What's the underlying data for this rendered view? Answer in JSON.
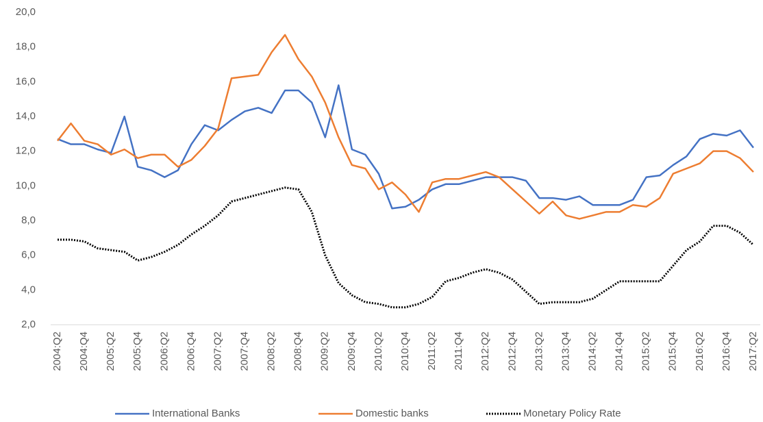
{
  "chart_data": {
    "type": "line",
    "categories": [
      "2004:Q2",
      null,
      "2004:Q4",
      null,
      "2005:Q2",
      null,
      "2005:Q4",
      null,
      "2006:Q2",
      null,
      "2006:Q4",
      null,
      "2007:Q2",
      null,
      "2007:Q4",
      null,
      "2008:Q2",
      null,
      "2008:Q4",
      null,
      "2009:Q2",
      null,
      "2009:Q4",
      null,
      "2010:Q2",
      null,
      "2010:Q4",
      null,
      "2011:Q2",
      null,
      "2011:Q4",
      null,
      "2012:Q2",
      null,
      "2012:Q4",
      null,
      "2013:Q2",
      null,
      "2013:Q4",
      null,
      "2014:Q2",
      null,
      "2014:Q4",
      null,
      "2015:Q2",
      null,
      "2015:Q4",
      null,
      "2016:Q2",
      null,
      "2016:Q4",
      null,
      "2017:Q2"
    ],
    "series": [
      {
        "name": "International Banks",
        "color": "#4472c4",
        "style": "solid",
        "values": [
          12.7,
          12.4,
          12.4,
          12.1,
          11.9,
          14.0,
          11.1,
          10.9,
          10.5,
          10.9,
          12.4,
          13.5,
          13.2,
          13.8,
          14.3,
          14.5,
          14.2,
          15.5,
          15.5,
          14.8,
          12.8,
          15.8,
          12.1,
          11.8,
          10.7,
          8.7,
          8.8,
          9.2,
          9.8,
          10.1,
          10.1,
          10.3,
          10.5,
          10.5,
          10.5,
          10.3,
          9.3,
          9.3,
          9.2,
          9.4,
          8.9,
          8.9,
          8.9,
          9.2,
          10.5,
          10.6,
          11.2,
          11.7,
          12.7,
          13.0,
          12.9,
          13.2,
          12.2
        ]
      },
      {
        "name": "Domestic banks",
        "color": "#ed7d31",
        "style": "solid",
        "values": [
          12.6,
          13.6,
          12.6,
          12.4,
          11.8,
          12.1,
          11.6,
          11.8,
          11.8,
          11.1,
          11.5,
          12.3,
          13.3,
          16.2,
          16.3,
          16.4,
          17.7,
          18.7,
          17.3,
          16.3,
          14.8,
          12.8,
          11.2,
          11.0,
          9.8,
          10.2,
          9.5,
          8.5,
          10.2,
          10.4,
          10.4,
          10.6,
          10.8,
          10.5,
          9.8,
          9.1,
          8.4,
          9.1,
          8.3,
          8.1,
          8.3,
          8.5,
          8.5,
          8.9,
          8.8,
          9.3,
          10.7,
          11.0,
          11.3,
          12.0,
          12.0,
          11.6,
          10.8
        ]
      },
      {
        "name": "Monetary Policy Rate",
        "color": "#000000",
        "style": "dotted",
        "values": [
          6.9,
          6.9,
          6.8,
          6.4,
          6.3,
          6.2,
          5.7,
          5.9,
          6.2,
          6.6,
          7.2,
          7.7,
          8.3,
          9.1,
          9.3,
          9.5,
          9.7,
          9.9,
          9.8,
          8.5,
          6.0,
          4.4,
          3.7,
          3.3,
          3.2,
          3.0,
          3.0,
          3.2,
          3.6,
          4.5,
          4.7,
          5.0,
          5.2,
          5.0,
          4.6,
          3.9,
          3.2,
          3.3,
          3.3,
          3.3,
          3.5,
          4.0,
          4.5,
          4.5,
          4.5,
          4.5,
          5.4,
          6.3,
          6.8,
          7.7,
          7.7,
          7.3,
          6.6
        ]
      }
    ],
    "ylim": [
      2,
      20
    ],
    "yticks": [
      {
        "value": 2,
        "label": "2,0"
      },
      {
        "value": 4,
        "label": "4,0"
      },
      {
        "value": 6,
        "label": "6,0"
      },
      {
        "value": 8,
        "label": "8,0"
      },
      {
        "value": 10,
        "label": "10,0"
      },
      {
        "value": 12,
        "label": "12,0"
      },
      {
        "value": 14,
        "label": "14,0"
      },
      {
        "value": 16,
        "label": "16,0"
      },
      {
        "value": 18,
        "label": "18,0"
      },
      {
        "value": 20,
        "label": "20,0"
      }
    ],
    "grid": false,
    "legend": "bottom"
  }
}
